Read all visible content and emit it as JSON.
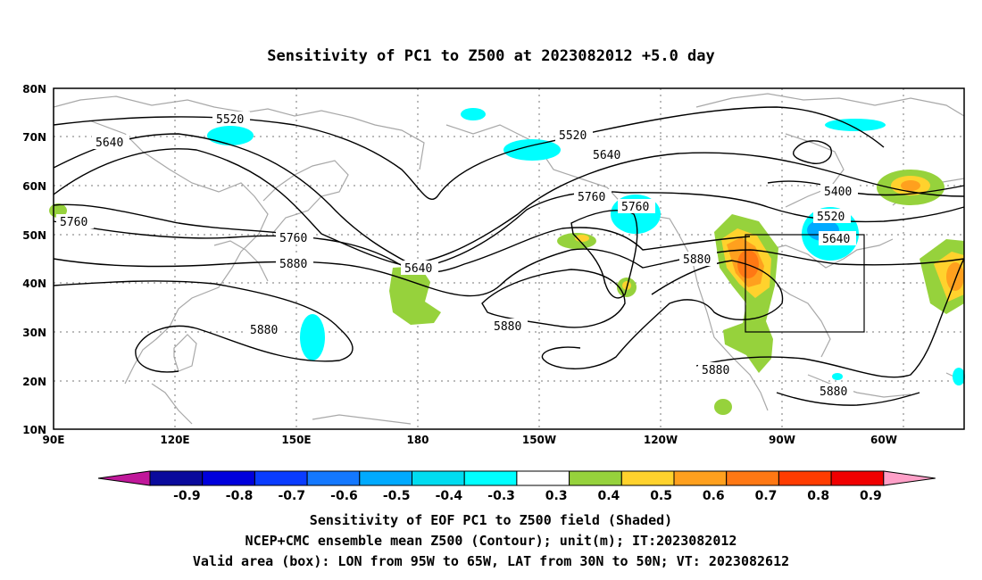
{
  "title": "Sensitivity of PC1 to Z500 at 2023082012 +5.0 day",
  "lat_ticks": [
    "80N",
    "70N",
    "60N",
    "50N",
    "40N",
    "30N",
    "20N",
    "10N"
  ],
  "lon_ticks": [
    "90E",
    "120E",
    "150E",
    "180",
    "150W",
    "120W",
    "90W",
    "60W"
  ],
  "contour_labels": [
    {
      "text": "5520",
      "id": "a"
    },
    {
      "text": "5640",
      "id": "b"
    },
    {
      "text": "5760",
      "id": "c"
    },
    {
      "text": "5520",
      "id": "d"
    },
    {
      "text": "5640",
      "id": "e"
    },
    {
      "text": "5760",
      "id": "f"
    },
    {
      "text": "5760",
      "id": "g"
    },
    {
      "text": "5760",
      "id": "h"
    },
    {
      "text": "5880",
      "id": "i"
    },
    {
      "text": "5640",
      "id": "j"
    },
    {
      "text": "5880",
      "id": "k"
    },
    {
      "text": "5880",
      "id": "l"
    },
    {
      "text": "5880",
      "id": "m"
    },
    {
      "text": "5880",
      "id": "n"
    },
    {
      "text": "5400",
      "id": "o"
    },
    {
      "text": "5520",
      "id": "p"
    },
    {
      "text": "5640",
      "id": "q"
    },
    {
      "text": "5880",
      "id": "r"
    }
  ],
  "colorbar": {
    "labels": [
      "-0.9",
      "-0.8",
      "-0.7",
      "-0.6",
      "-0.5",
      "-0.4",
      "-0.3",
      "0.3",
      "0.4",
      "0.5",
      "0.6",
      "0.7",
      "0.8",
      "0.9"
    ],
    "colors": [
      "#0a0a9c",
      "#0000dc",
      "#0a3cff",
      "#1478ff",
      "#00aaff",
      "#00dcf0",
      "#00ffff",
      "#ffffff",
      "#96d23c",
      "#ffd22d",
      "#ffa01e",
      "#ff7814",
      "#ff3c00",
      "#f00000"
    ],
    "low_arrow_color": "#c0189a",
    "high_arrow_color": "#ffa0c8"
  },
  "footer": {
    "line1": "Sensitivity of EOF PC1 to Z500 field (Shaded)",
    "line2": "NCEP+CMC ensemble mean Z500 (Contour); unit(m); IT:2023082012",
    "line3": "Valid area (box): LON from 95W to 65W, LAT from 30N to 50N; VT: 2023082612"
  }
}
